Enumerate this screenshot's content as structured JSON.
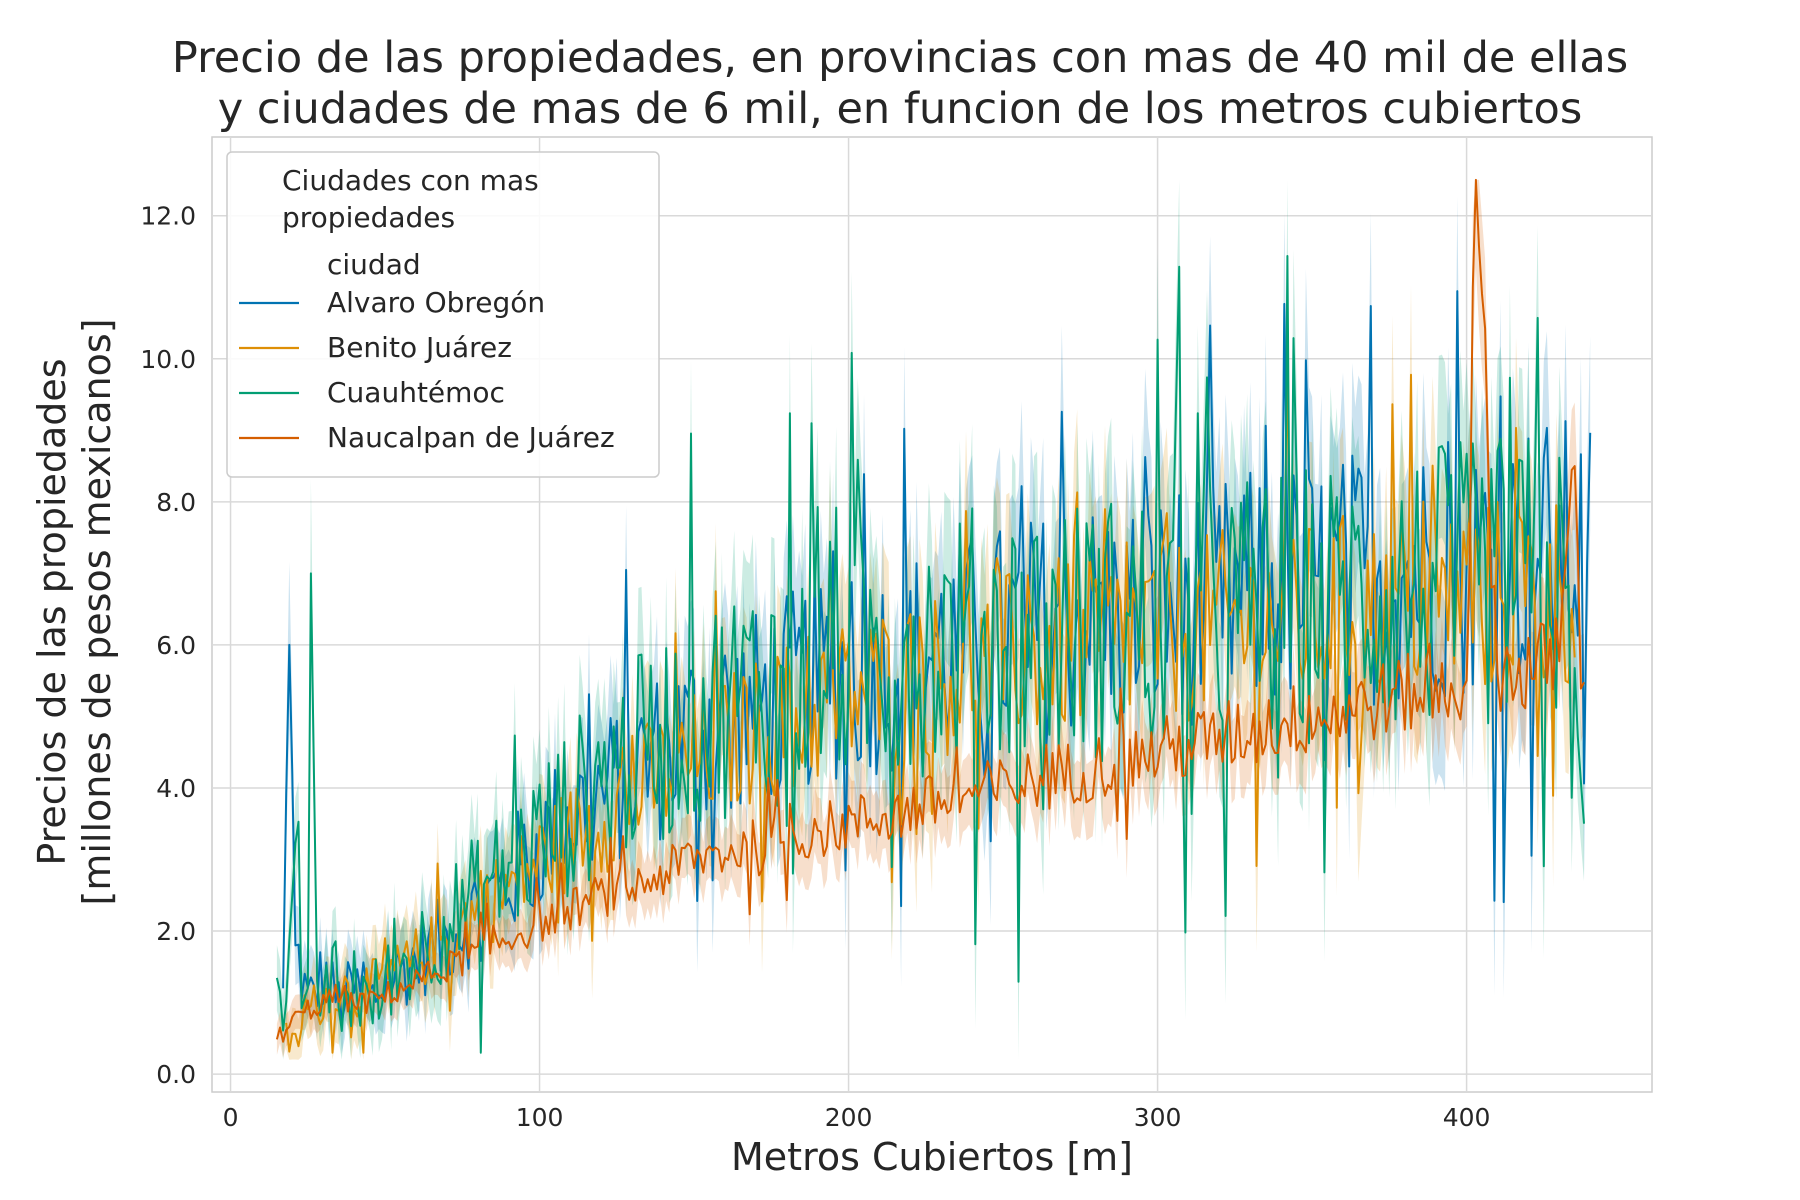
{
  "chart_data": {
    "type": "line",
    "title": "Precio de las propiedades, en provincias con mas de 40 mil de ellas",
    "subtitle": "y ciudades de mas de 6 mil, en funcion de los metros cubiertos",
    "xlabel": "Metros Cubiertos [m]",
    "ylabel": "Precios de las propiedades",
    "ylabel2": "[millones de pesos mexicanos]",
    "xlim": [
      -6,
      460
    ],
    "ylim": [
      -0.25,
      13.1
    ],
    "x_ticks": [
      0,
      100,
      200,
      300,
      400
    ],
    "y_ticks": [
      0.0,
      2.0,
      4.0,
      6.0,
      8.0,
      10.0,
      12.0
    ],
    "grid": true,
    "legend": {
      "title_line1": "Ciudades con mas",
      "title_line2": "propiedades",
      "subheader": "ciudad",
      "placement": "upper-left"
    },
    "series": [
      {
        "name": "Alvaro Obregón",
        "color": "#0173b2",
        "x": [
          17,
          19,
          21,
          25,
          30,
          35,
          40,
          45,
          50,
          60,
          70,
          80,
          90,
          100,
          110,
          120,
          130,
          140,
          150,
          160,
          170,
          180,
          190,
          200,
          210,
          220,
          230,
          240,
          250,
          260,
          270,
          280,
          290,
          300,
          310,
          320,
          330,
          340,
          350,
          360,
          370,
          380,
          390,
          400,
          405,
          410,
          415,
          420,
          425,
          430,
          435,
          440
        ],
        "y": [
          1.2,
          6.0,
          1.8,
          1.0,
          1.4,
          1.0,
          1.2,
          1.0,
          1.3,
          1.6,
          1.9,
          2.3,
          2.7,
          3.2,
          3.6,
          3.9,
          4.2,
          4.5,
          4.8,
          5.0,
          5.1,
          5.3,
          5.5,
          5.6,
          5.7,
          5.8,
          5.9,
          6.0,
          6.1,
          6.2,
          6.3,
          6.4,
          6.4,
          6.5,
          6.6,
          6.6,
          6.7,
          6.8,
          6.8,
          6.9,
          7.0,
          7.0,
          7.1,
          7.1,
          7.2,
          7.2,
          7.2,
          7.3,
          7.3,
          7.3,
          7.3,
          7.3
        ]
      },
      {
        "name": "Benito Juárez",
        "color": "#de8f05",
        "x": [
          18,
          21,
          24,
          28,
          32,
          36,
          40,
          45,
          50,
          60,
          70,
          80,
          90,
          100,
          110,
          120,
          130,
          140,
          150,
          160,
          170,
          180,
          190,
          200,
          210,
          220,
          230,
          240,
          250,
          260,
          270,
          280,
          290,
          300,
          310,
          320,
          330,
          340,
          350,
          360,
          370,
          380,
          390,
          400,
          410,
          420,
          430,
          435
        ],
        "y": [
          0.5,
          0.4,
          0.8,
          1.0,
          1.1,
          1.2,
          1.1,
          1.2,
          1.3,
          1.6,
          1.9,
          2.3,
          2.6,
          3.0,
          3.3,
          3.6,
          3.9,
          4.2,
          4.4,
          4.6,
          4.8,
          5.0,
          5.1,
          5.3,
          5.4,
          5.5,
          5.6,
          5.7,
          5.8,
          5.9,
          6.0,
          6.0,
          6.1,
          6.2,
          6.2,
          6.3,
          6.3,
          6.4,
          6.4,
          6.5,
          6.5,
          6.6,
          6.6,
          6.7,
          6.7,
          6.7,
          6.8,
          6.8
        ]
      },
      {
        "name": "Cuauhtémoc",
        "color": "#029e73",
        "x": [
          15,
          18,
          21,
          23,
          25,
          26,
          28,
          30,
          33,
          36,
          40,
          45,
          50,
          60,
          70,
          80,
          90,
          100,
          110,
          120,
          130,
          140,
          150,
          160,
          170,
          180,
          190,
          200,
          210,
          220,
          230,
          240,
          250,
          260,
          270,
          280,
          290,
          300,
          310,
          320,
          330,
          340,
          350,
          360,
          370,
          380,
          390,
          400,
          410,
          420,
          430,
          438
        ],
        "y": [
          1.1,
          0.8,
          2.4,
          1.2,
          1.2,
          7.0,
          1.3,
          0.8,
          1.5,
          1.0,
          1.1,
          1.0,
          1.3,
          1.7,
          2.1,
          2.5,
          2.9,
          3.3,
          3.7,
          4.1,
          4.4,
          4.7,
          5.0,
          5.2,
          5.4,
          5.6,
          5.7,
          5.8,
          5.9,
          6.0,
          6.0,
          6.1,
          6.1,
          6.2,
          6.2,
          6.2,
          6.3,
          6.3,
          6.4,
          6.4,
          6.5,
          6.5,
          6.6,
          6.6,
          6.7,
          6.7,
          6.8,
          6.8,
          6.9,
          6.9,
          6.8,
          3.5
        ]
      },
      {
        "name": "Naucalpan de Juárez",
        "color": "#d55e00",
        "x": [
          15,
          20,
          25,
          30,
          35,
          40,
          45,
          50,
          60,
          70,
          80,
          90,
          100,
          110,
          120,
          130,
          140,
          150,
          160,
          170,
          180,
          190,
          200,
          210,
          220,
          230,
          240,
          250,
          260,
          270,
          280,
          290,
          300,
          310,
          320,
          330,
          340,
          350,
          360,
          370,
          380,
          390,
          400,
          403,
          410,
          420,
          430,
          435,
          438
        ],
        "y": [
          0.5,
          0.7,
          0.9,
          1.0,
          1.1,
          1.0,
          1.0,
          1.1,
          1.3,
          1.5,
          1.7,
          1.9,
          2.1,
          2.3,
          2.5,
          2.6,
          2.8,
          3.0,
          3.1,
          3.2,
          3.3,
          3.4,
          3.5,
          3.6,
          3.7,
          3.8,
          3.9,
          4.0,
          4.1,
          4.2,
          4.3,
          4.4,
          4.5,
          4.6,
          4.7,
          4.8,
          4.9,
          5.0,
          5.1,
          5.2,
          5.3,
          5.4,
          5.5,
          12.5,
          5.6,
          5.7,
          5.8,
          8.5,
          6.0
        ]
      }
    ]
  }
}
